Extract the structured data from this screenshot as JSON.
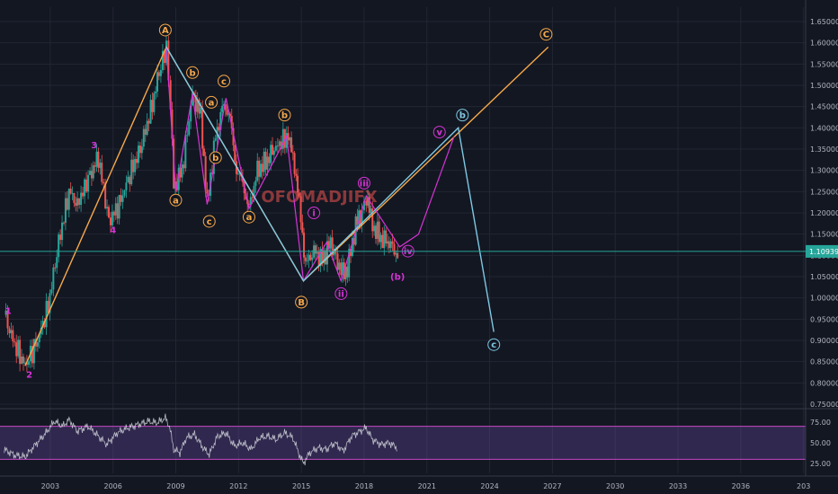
{
  "watermark": "OFOMADJIFX",
  "colors": {
    "background": "#131722",
    "grid": "#222632",
    "candle_up": "#26a69a",
    "candle_down": "#ef5350",
    "wave_orange": "#f7a94a",
    "wave_magenta": "#d633d6",
    "wave_cyan": "#7ec8e3",
    "price_line": "#26a69a",
    "rsi_line": "#d1d4dc",
    "rsi_band": "#7e57c2",
    "axis_text": "#b2b5be"
  },
  "chart_data": {
    "type": "candlestick",
    "instrument_note": "weekly price with Elliott wave annotation",
    "price_axis": {
      "min": 0.75,
      "max": 1.65,
      "ticks": [
        "0.75000",
        "0.80000",
        "0.85000",
        "0.90000",
        "0.95000",
        "1.00000",
        "1.05000",
        "1.10000",
        "1.15000",
        "1.20000",
        "1.25000",
        "1.30000",
        "1.35000",
        "1.40000",
        "1.45000",
        "1.50000",
        "1.55000",
        "1.60000",
        "1.65000"
      ]
    },
    "time_axis": {
      "min": 2000.6,
      "max": 2039.1,
      "ticks": [
        "2003",
        "2006",
        "2009",
        "2012",
        "2015",
        "2018",
        "2021",
        "2024",
        "2027",
        "2030",
        "2033",
        "2036",
        "203"
      ]
    },
    "current_price": {
      "value": 1.10939,
      "label": "1.10939"
    },
    "price_path": [
      [
        2000.8,
        0.96
      ],
      [
        2001.3,
        0.89
      ],
      [
        2001.8,
        0.84
      ],
      [
        2002.4,
        0.9
      ],
      [
        2002.9,
        0.98
      ],
      [
        2003.4,
        1.13
      ],
      [
        2003.9,
        1.25
      ],
      [
        2004.3,
        1.22
      ],
      [
        2004.9,
        1.29
      ],
      [
        2005.3,
        1.33
      ],
      [
        2005.8,
        1.18
      ],
      [
        2006.3,
        1.22
      ],
      [
        2006.8,
        1.29
      ],
      [
        2007.3,
        1.35
      ],
      [
        2007.8,
        1.44
      ],
      [
        2008.2,
        1.53
      ],
      [
        2008.55,
        1.59
      ],
      [
        2008.75,
        1.45
      ],
      [
        2008.9,
        1.26
      ],
      [
        2009.3,
        1.3
      ],
      [
        2009.8,
        1.48
      ],
      [
        2010.2,
        1.43
      ],
      [
        2010.5,
        1.22
      ],
      [
        2010.9,
        1.38
      ],
      [
        2011.3,
        1.46
      ],
      [
        2011.6,
        1.42
      ],
      [
        2011.9,
        1.3
      ],
      [
        2012.2,
        1.27
      ],
      [
        2012.5,
        1.21
      ],
      [
        2012.9,
        1.3
      ],
      [
        2013.3,
        1.32
      ],
      [
        2013.7,
        1.35
      ],
      [
        2014.3,
        1.38
      ],
      [
        2014.6,
        1.34
      ],
      [
        2014.9,
        1.22
      ],
      [
        2015.2,
        1.08
      ],
      [
        2015.6,
        1.11
      ],
      [
        2016.0,
        1.09
      ],
      [
        2016.4,
        1.13
      ],
      [
        2016.9,
        1.06
      ],
      [
        2017.2,
        1.07
      ],
      [
        2017.6,
        1.17
      ],
      [
        2017.9,
        1.2
      ],
      [
        2018.1,
        1.24
      ],
      [
        2018.4,
        1.17
      ],
      [
        2018.8,
        1.14
      ],
      [
        2019.2,
        1.13
      ],
      [
        2019.6,
        1.1
      ]
    ],
    "rsi": {
      "ticks": [
        "75.00",
        "50.00",
        "25.00"
      ],
      "overbought": 70,
      "oversold": 30,
      "values": [
        [
          2000.8,
          42
        ],
        [
          2001.3,
          35
        ],
        [
          2001.8,
          33
        ],
        [
          2002.3,
          48
        ],
        [
          2002.8,
          62
        ],
        [
          2003.2,
          76
        ],
        [
          2003.6,
          70
        ],
        [
          2003.9,
          78
        ],
        [
          2004.3,
          64
        ],
        [
          2004.8,
          70
        ],
        [
          2005.3,
          58
        ],
        [
          2005.7,
          48
        ],
        [
          2006.2,
          62
        ],
        [
          2006.7,
          68
        ],
        [
          2007.2,
          72
        ],
        [
          2007.7,
          76
        ],
        [
          2008.1,
          74
        ],
        [
          2008.5,
          80
        ],
        [
          2008.7,
          70
        ],
        [
          2008.9,
          42
        ],
        [
          2009.2,
          38
        ],
        [
          2009.5,
          56
        ],
        [
          2009.9,
          60
        ],
        [
          2010.3,
          44
        ],
        [
          2010.6,
          36
        ],
        [
          2011.0,
          58
        ],
        [
          2011.4,
          62
        ],
        [
          2011.8,
          46
        ],
        [
          2012.2,
          50
        ],
        [
          2012.6,
          42
        ],
        [
          2013.0,
          56
        ],
        [
          2013.4,
          58
        ],
        [
          2013.8,
          54
        ],
        [
          2014.2,
          62
        ],
        [
          2014.6,
          56
        ],
        [
          2014.9,
          36
        ],
        [
          2015.1,
          25
        ],
        [
          2015.4,
          38
        ],
        [
          2015.8,
          44
        ],
        [
          2016.2,
          42
        ],
        [
          2016.6,
          50
        ],
        [
          2017.0,
          40
        ],
        [
          2017.4,
          58
        ],
        [
          2017.8,
          64
        ],
        [
          2018.1,
          68
        ],
        [
          2018.4,
          54
        ],
        [
          2018.8,
          48
        ],
        [
          2019.2,
          50
        ],
        [
          2019.6,
          44
        ]
      ]
    }
  },
  "wave_paths": {
    "orange": [
      [
        2001.8,
        0.84
      ],
      [
        2008.55,
        1.59
      ],
      [
        2015.1,
        1.04
      ],
      [
        2026.8,
        1.59
      ]
    ],
    "magenta_dashed": [
      [
        2008.55,
        1.59
      ],
      [
        2009.0,
        1.25
      ],
      [
        2009.8,
        1.48
      ],
      [
        2010.5,
        1.22
      ],
      [
        2011.4,
        1.47
      ],
      [
        2012.5,
        1.21
      ],
      [
        2014.3,
        1.38
      ],
      [
        2015.1,
        1.04
      ],
      [
        2016.2,
        1.13
      ],
      [
        2016.9,
        1.04
      ],
      [
        2018.1,
        1.24
      ],
      [
        2019.7,
        1.12
      ],
      [
        2020.6,
        1.15
      ],
      [
        2022.3,
        1.38
      ]
    ],
    "cyan": [
      [
        2008.55,
        1.59
      ],
      [
        2015.1,
        1.04
      ],
      [
        2022.5,
        1.4
      ],
      [
        2024.2,
        0.92
      ]
    ]
  },
  "wave_labels": [
    {
      "text": "1",
      "t": 2001.0,
      "p": 0.97,
      "color": "magenta",
      "circle": false
    },
    {
      "text": "2",
      "t": 2002.0,
      "p": 0.82,
      "color": "magenta",
      "circle": false
    },
    {
      "text": "3",
      "t": 2005.1,
      "p": 1.36,
      "color": "magenta",
      "circle": false
    },
    {
      "text": "4",
      "t": 2006.0,
      "p": 1.16,
      "color": "magenta",
      "circle": false
    },
    {
      "text": "A",
      "t": 2008.5,
      "p": 1.63,
      "color": "orange",
      "circle": true
    },
    {
      "text": "b",
      "t": 2009.8,
      "p": 1.53,
      "color": "orange",
      "circle": true
    },
    {
      "text": "a",
      "t": 2009.0,
      "p": 1.23,
      "color": "orange",
      "circle": true
    },
    {
      "text": "c",
      "t": 2011.3,
      "p": 1.51,
      "color": "orange",
      "circle": true
    },
    {
      "text": "a",
      "t": 2010.7,
      "p": 1.46,
      "color": "orange",
      "circle": true
    },
    {
      "text": "b",
      "t": 2010.9,
      "p": 1.33,
      "color": "orange",
      "circle": true
    },
    {
      "text": "c",
      "t": 2010.6,
      "p": 1.18,
      "color": "orange",
      "circle": true
    },
    {
      "text": "a",
      "t": 2012.5,
      "p": 1.19,
      "color": "orange",
      "circle": true
    },
    {
      "text": "b",
      "t": 2014.2,
      "p": 1.43,
      "color": "orange",
      "circle": true
    },
    {
      "text": "B",
      "t": 2015.0,
      "p": 0.99,
      "color": "orange",
      "circle": true
    },
    {
      "text": "C",
      "t": 2026.7,
      "p": 1.62,
      "color": "orange",
      "circle": true
    },
    {
      "text": "i",
      "t": 2015.6,
      "p": 1.2,
      "color": "magenta",
      "circle": true
    },
    {
      "text": "ii",
      "t": 2016.9,
      "p": 1.01,
      "color": "magenta",
      "circle": true
    },
    {
      "text": "iii",
      "t": 2018.0,
      "p": 1.27,
      "color": "magenta",
      "circle": true
    },
    {
      "text": "iv",
      "t": 2020.1,
      "p": 1.11,
      "color": "magenta",
      "circle": true
    },
    {
      "text": "v",
      "t": 2021.6,
      "p": 1.39,
      "color": "magenta",
      "circle": true
    },
    {
      "text": "(b)",
      "t": 2019.6,
      "p": 1.05,
      "color": "magenta",
      "circle": false
    },
    {
      "text": "b",
      "t": 2022.7,
      "p": 1.43,
      "color": "cyan",
      "circle": true
    },
    {
      "text": "c",
      "t": 2024.2,
      "p": 0.89,
      "color": "cyan",
      "circle": true
    }
  ]
}
